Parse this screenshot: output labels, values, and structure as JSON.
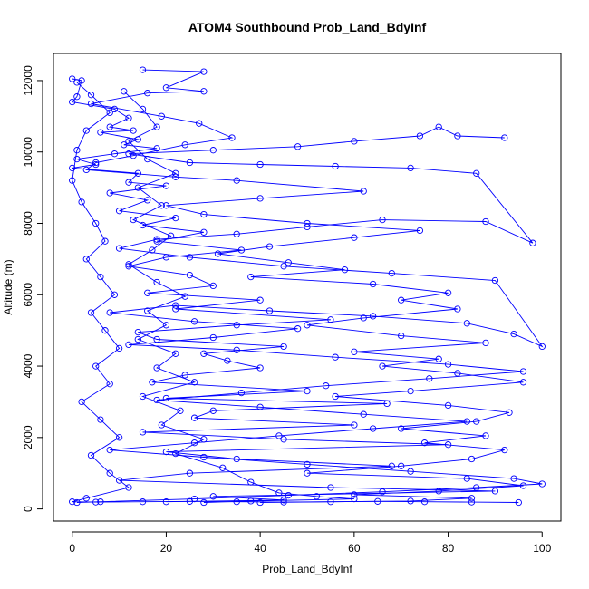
{
  "chart_data": {
    "type": "line",
    "title": "ATOM4 Southbound Prob_Land_BdyInf",
    "xlabel": "Prob_Land_BdyInf",
    "ylabel": "Altitude (m)",
    "xlim": [
      -4,
      104
    ],
    "ylim": [
      -340,
      12760
    ],
    "xticks": [
      0,
      20,
      40,
      60,
      80,
      100
    ],
    "yticks": [
      0,
      2000,
      4000,
      6000,
      8000,
      10000,
      12000
    ],
    "grid": false,
    "legend": "none",
    "markers": "open-circle",
    "color": "#0000ff",
    "series": [
      {
        "values": [
          [
            0,
            12050
          ],
          [
            2,
            12000
          ],
          [
            1,
            11550
          ],
          [
            0,
            11400
          ],
          [
            9,
            11200
          ],
          [
            12,
            10950
          ],
          [
            8,
            10700
          ],
          [
            13,
            10600
          ],
          [
            6,
            10550
          ],
          [
            14,
            10350
          ],
          [
            11,
            10200
          ],
          [
            18,
            10100
          ],
          [
            9,
            9950
          ],
          [
            1,
            9800
          ],
          [
            5,
            9650
          ],
          [
            0,
            9550
          ],
          [
            14,
            9400
          ],
          [
            12,
            9150
          ],
          [
            20,
            9050
          ],
          [
            8,
            8850
          ],
          [
            16,
            8650
          ],
          [
            10,
            8350
          ],
          [
            22,
            8150
          ],
          [
            15,
            7950
          ],
          [
            28,
            7750
          ],
          [
            18,
            7500
          ],
          [
            36,
            7250
          ],
          [
            20,
            7050
          ],
          [
            12,
            6800
          ],
          [
            25,
            6550
          ],
          [
            30,
            6250
          ],
          [
            16,
            6050
          ],
          [
            40,
            5850
          ],
          [
            22,
            5600
          ],
          [
            55,
            5300
          ],
          [
            35,
            5150
          ],
          [
            14,
            4950
          ],
          [
            18,
            4750
          ],
          [
            45,
            4550
          ],
          [
            28,
            4350
          ],
          [
            33,
            4150
          ],
          [
            40,
            3950
          ],
          [
            24,
            3750
          ],
          [
            17,
            3550
          ],
          [
            50,
            3300
          ],
          [
            20,
            3100
          ],
          [
            67,
            2950
          ],
          [
            30,
            2750
          ],
          [
            26,
            2550
          ],
          [
            60,
            2350
          ],
          [
            15,
            2150
          ],
          [
            45,
            1950
          ],
          [
            80,
            1800
          ],
          [
            20,
            1600
          ],
          [
            35,
            1400
          ],
          [
            68,
            1200
          ],
          [
            25,
            1000
          ],
          [
            10,
            800
          ],
          [
            55,
            600
          ],
          [
            90,
            500
          ],
          [
            30,
            350
          ],
          [
            45,
            250
          ],
          [
            20,
            200
          ]
        ]
      },
      {
        "values": [
          [
            15,
            12300
          ],
          [
            28,
            12250
          ],
          [
            20,
            11800
          ],
          [
            28,
            11700
          ],
          [
            16,
            11650
          ],
          [
            4,
            11350
          ],
          [
            19,
            11000
          ],
          [
            27,
            10800
          ],
          [
            34,
            10400
          ],
          [
            24,
            10200
          ],
          [
            13,
            9900
          ],
          [
            5,
            9700
          ],
          [
            3,
            9500
          ],
          [
            22,
            9300
          ],
          [
            35,
            9200
          ],
          [
            62,
            8900
          ],
          [
            40,
            8700
          ],
          [
            20,
            8500
          ],
          [
            28,
            8250
          ],
          [
            50,
            8000
          ],
          [
            74,
            7800
          ],
          [
            60,
            7600
          ],
          [
            42,
            7350
          ],
          [
            31,
            7150
          ],
          [
            46,
            6900
          ],
          [
            58,
            6700
          ],
          [
            38,
            6500
          ],
          [
            64,
            6300
          ],
          [
            80,
            6050
          ],
          [
            70,
            5850
          ],
          [
            82,
            5600
          ],
          [
            62,
            5350
          ],
          [
            50,
            5150
          ],
          [
            70,
            4850
          ],
          [
            88,
            4650
          ],
          [
            60,
            4400
          ],
          [
            78,
            4200
          ],
          [
            66,
            4000
          ],
          [
            82,
            3800
          ],
          [
            96,
            3550
          ],
          [
            72,
            3300
          ],
          [
            56,
            3150
          ],
          [
            80,
            2900
          ],
          [
            93,
            2700
          ],
          [
            86,
            2450
          ],
          [
            70,
            2250
          ],
          [
            88,
            2050
          ],
          [
            75,
            1850
          ],
          [
            92,
            1650
          ],
          [
            85,
            1400
          ],
          [
            70,
            1200
          ],
          [
            50,
            1000
          ],
          [
            84,
            850
          ],
          [
            96,
            650
          ],
          [
            78,
            500
          ],
          [
            60,
            400
          ],
          [
            85,
            300
          ],
          [
            72,
            220
          ],
          [
            40,
            180
          ]
        ]
      },
      {
        "values": [
          [
            92,
            10400
          ],
          [
            82,
            10450
          ],
          [
            78,
            10700
          ],
          [
            74,
            10450
          ],
          [
            60,
            10300
          ],
          [
            48,
            10150
          ],
          [
            30,
            10050
          ],
          [
            12,
            9950
          ],
          [
            25,
            9700
          ],
          [
            40,
            9650
          ],
          [
            56,
            9600
          ],
          [
            72,
            9550
          ],
          [
            86,
            9400
          ],
          [
            98,
            7450
          ],
          [
            88,
            8050
          ],
          [
            66,
            8100
          ],
          [
            50,
            7900
          ],
          [
            35,
            7700
          ],
          [
            18,
            7550
          ],
          [
            10,
            7300
          ],
          [
            25,
            7050
          ],
          [
            45,
            6800
          ],
          [
            68,
            6600
          ],
          [
            90,
            6400
          ],
          [
            100,
            4550
          ],
          [
            94,
            4900
          ],
          [
            84,
            5200
          ],
          [
            64,
            5400
          ],
          [
            42,
            5550
          ],
          [
            22,
            5700
          ],
          [
            8,
            5500
          ],
          [
            26,
            5250
          ],
          [
            48,
            5050
          ],
          [
            30,
            4800
          ],
          [
            12,
            4600
          ],
          [
            35,
            4450
          ],
          [
            56,
            4250
          ],
          [
            80,
            4050
          ],
          [
            96,
            3850
          ],
          [
            76,
            3650
          ],
          [
            54,
            3450
          ],
          [
            36,
            3250
          ],
          [
            18,
            3050
          ],
          [
            40,
            2850
          ],
          [
            62,
            2650
          ],
          [
            84,
            2450
          ],
          [
            64,
            2250
          ],
          [
            44,
            2050
          ],
          [
            26,
            1850
          ],
          [
            8,
            1650
          ],
          [
            28,
            1450
          ],
          [
            50,
            1250
          ],
          [
            72,
            1050
          ],
          [
            94,
            850
          ],
          [
            100,
            700
          ],
          [
            86,
            600
          ],
          [
            66,
            480
          ],
          [
            46,
            380
          ],
          [
            26,
            280
          ],
          [
            6,
            200
          ],
          [
            1,
            180
          ]
        ]
      },
      {
        "values": [
          [
            1,
            11950
          ],
          [
            4,
            11600
          ],
          [
            8,
            11100
          ],
          [
            3,
            10600
          ],
          [
            1,
            10050
          ],
          [
            0,
            9200
          ],
          [
            2,
            8600
          ],
          [
            5,
            8000
          ],
          [
            7,
            7500
          ],
          [
            3,
            7000
          ],
          [
            6,
            6500
          ],
          [
            9,
            6000
          ],
          [
            4,
            5500
          ],
          [
            7,
            5000
          ],
          [
            10,
            4500
          ],
          [
            5,
            4000
          ],
          [
            8,
            3500
          ],
          [
            2,
            3000
          ],
          [
            6,
            2500
          ],
          [
            10,
            2000
          ],
          [
            4,
            1500
          ],
          [
            8,
            1000
          ],
          [
            12,
            600
          ],
          [
            3,
            300
          ],
          [
            0,
            200
          ],
          [
            5,
            190
          ],
          [
            15,
            200
          ],
          [
            25,
            210
          ],
          [
            35,
            200
          ],
          [
            45,
            190
          ],
          [
            55,
            200
          ],
          [
            65,
            210
          ],
          [
            75,
            200
          ],
          [
            85,
            190
          ],
          [
            95,
            180
          ]
        ]
      },
      {
        "values": [
          [
            11,
            11700
          ],
          [
            15,
            11200
          ],
          [
            18,
            10700
          ],
          [
            12,
            10300
          ],
          [
            16,
            9800
          ],
          [
            22,
            9400
          ],
          [
            14,
            9000
          ],
          [
            19,
            8500
          ],
          [
            13,
            8100
          ],
          [
            21,
            7650
          ],
          [
            17,
            7250
          ],
          [
            12,
            6850
          ],
          [
            18,
            6350
          ],
          [
            24,
            5950
          ],
          [
            16,
            5550
          ],
          [
            20,
            5150
          ],
          [
            14,
            4750
          ],
          [
            22,
            4350
          ],
          [
            18,
            3950
          ],
          [
            26,
            3550
          ],
          [
            15,
            3150
          ],
          [
            23,
            2750
          ],
          [
            19,
            2350
          ],
          [
            28,
            1950
          ],
          [
            22,
            1550
          ],
          [
            32,
            1150
          ],
          [
            38,
            750
          ],
          [
            44,
            450
          ],
          [
            52,
            350
          ],
          [
            60,
            280
          ],
          [
            38,
            220
          ],
          [
            28,
            180
          ]
        ]
      }
    ]
  }
}
